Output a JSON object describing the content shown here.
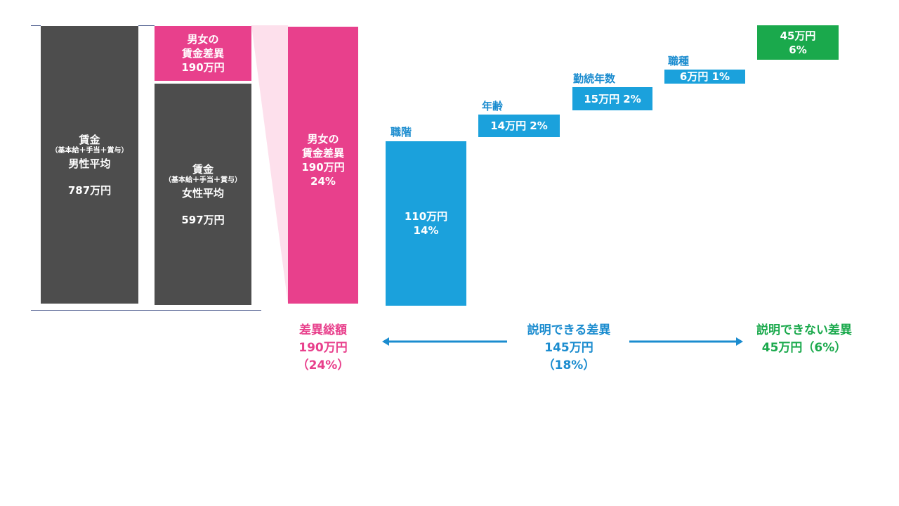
{
  "colors": {
    "male_female_bar": "#4d4d4d",
    "gap": "#e8408c",
    "explained": "#1ba1dc",
    "unexplained": "#1aa94c"
  },
  "chart_data": {
    "type": "waterfall",
    "unit": "万円",
    "male_bar": {
      "title": "賃金",
      "sub": "（基本給＋手当＋賞与）",
      "label": "男性平均",
      "value_text": "787万円",
      "value": 787
    },
    "female_bar": {
      "title": "賃金",
      "sub": "（基本給＋手当＋賞与）",
      "label": "女性平均",
      "value_text": "597万円",
      "value": 597
    },
    "gap_top": {
      "line1": "男女の",
      "line2": "賃金差異",
      "line3": "190万円",
      "value": 190
    },
    "gap_bar": {
      "line1": "男女の",
      "line2": "賃金差異",
      "line3": "190万円",
      "line4": "24%",
      "value": 190,
      "percent": 24
    },
    "components": [
      {
        "name": "職階",
        "value_text": "110万円",
        "percent_text": "14%",
        "value": 110,
        "percent": 14
      },
      {
        "name": "年齢",
        "label": "14万円 2%",
        "value": 14,
        "percent": 2
      },
      {
        "name": "勤続年数",
        "label": "15万円 2%",
        "value": 15,
        "percent": 2
      },
      {
        "name": "職種",
        "label": "6万円 1%",
        "value": 6,
        "percent": 1
      }
    ],
    "unexplained": {
      "line1": "45万円",
      "line2": "6%",
      "value": 45,
      "percent": 6
    },
    "summary": {
      "total": {
        "line1": "差異総額",
        "line2": "190万円",
        "line3": "（24%）"
      },
      "explained": {
        "line1": "説明できる差異",
        "line2": "145万円",
        "line3": "（18%）"
      },
      "unexplained": {
        "line1": "説明できない差異",
        "line2": "45万円（6%）"
      }
    }
  }
}
